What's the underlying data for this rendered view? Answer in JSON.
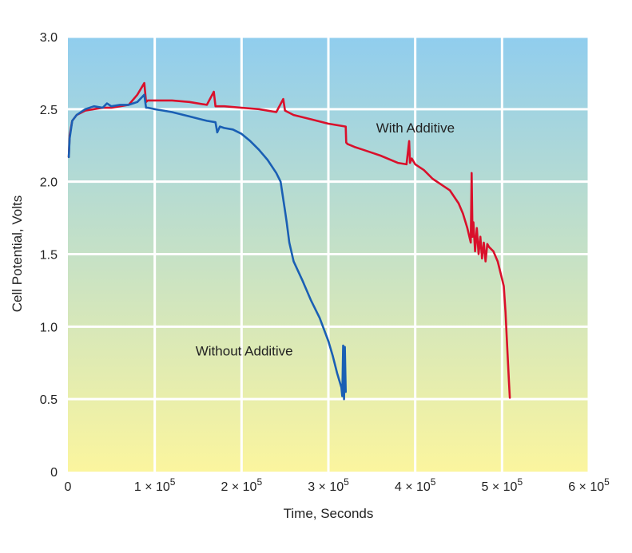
{
  "chart_data": {
    "type": "line",
    "title": "",
    "xlabel": "Time, Seconds",
    "ylabel": "Cell Potential, Volts",
    "xlim": [
      0,
      600000
    ],
    "ylim": [
      0,
      3.0
    ],
    "grid": true,
    "x_ticks": [
      {
        "value": 0,
        "label": "0"
      },
      {
        "value": 100000,
        "coef": "1",
        "sup": "5"
      },
      {
        "value": 200000,
        "coef": "2",
        "sup": "5"
      },
      {
        "value": 300000,
        "coef": "3",
        "sup": "5"
      },
      {
        "value": 400000,
        "coef": "4",
        "sup": "5"
      },
      {
        "value": 500000,
        "coef": "5",
        "sup": "5"
      },
      {
        "value": 600000,
        "coef": "6",
        "sup": "5"
      }
    ],
    "tick_mult": "× 10",
    "y_ticks": [
      {
        "value": 0,
        "label": "0"
      },
      {
        "value": 0.5,
        "label": "0.5"
      },
      {
        "value": 1.0,
        "label": "1.0"
      },
      {
        "value": 1.5,
        "label": "1.5"
      },
      {
        "value": 2.0,
        "label": "2.0"
      },
      {
        "value": 2.5,
        "label": "2.5"
      },
      {
        "value": 3.0,
        "label": "3.0"
      }
    ],
    "background_gradient": [
      "#90cdee",
      "#fbf59e"
    ],
    "series": [
      {
        "name": "With Additive",
        "color": "#d9102b",
        "x": [
          1000,
          2000,
          5000,
          10000,
          20000,
          30000,
          40000,
          50000,
          60000,
          70000,
          80000,
          88000,
          90000,
          92000,
          100000,
          120000,
          140000,
          160000,
          168000,
          170000,
          180000,
          200000,
          220000,
          240000,
          248000,
          250000,
          260000,
          280000,
          300000,
          320000,
          320500,
          322000,
          330000,
          340000,
          350000,
          360000,
          380000,
          390000,
          393000,
          394000,
          396000,
          400000,
          410000,
          420000,
          430000,
          440000,
          450000,
          455000,
          460000,
          464000,
          465000,
          466000,
          467000,
          469000,
          471000,
          473000,
          475000,
          477000,
          479000,
          481000,
          483000,
          485000,
          490000,
          495000,
          500000,
          502000,
          504000,
          506000,
          508000,
          509000
        ],
        "y": [
          2.17,
          2.32,
          2.42,
          2.46,
          2.49,
          2.5,
          2.51,
          2.51,
          2.52,
          2.53,
          2.6,
          2.68,
          2.55,
          2.56,
          2.56,
          2.56,
          2.55,
          2.53,
          2.62,
          2.52,
          2.52,
          2.51,
          2.5,
          2.48,
          2.57,
          2.49,
          2.46,
          2.43,
          2.4,
          2.38,
          2.27,
          2.26,
          2.24,
          2.22,
          2.2,
          2.18,
          2.13,
          2.12,
          2.28,
          2.13,
          2.16,
          2.12,
          2.08,
          2.02,
          1.98,
          1.94,
          1.85,
          1.78,
          1.68,
          1.58,
          2.06,
          1.62,
          1.72,
          1.52,
          1.68,
          1.5,
          1.62,
          1.47,
          1.58,
          1.45,
          1.57,
          1.55,
          1.52,
          1.45,
          1.33,
          1.28,
          1.1,
          0.85,
          0.62,
          0.51
        ]
      },
      {
        "name": "Without Additive",
        "color": "#1a5fb4",
        "x": [
          1000,
          2000,
          5000,
          10000,
          20000,
          30000,
          40000,
          45000,
          50000,
          60000,
          70000,
          80000,
          88000,
          90000,
          92000,
          100000,
          110000,
          120000,
          140000,
          160000,
          170000,
          172000,
          175000,
          180000,
          190000,
          200000,
          210000,
          220000,
          230000,
          240000,
          245000,
          250000,
          252000,
          255000,
          260000,
          270000,
          280000,
          290000,
          300000,
          305000,
          310000,
          315000,
          316000,
          317000,
          318000,
          319000,
          320000
        ],
        "y": [
          2.17,
          2.3,
          2.42,
          2.46,
          2.5,
          2.52,
          2.51,
          2.54,
          2.52,
          2.53,
          2.53,
          2.55,
          2.6,
          2.51,
          2.51,
          2.5,
          2.49,
          2.48,
          2.45,
          2.42,
          2.41,
          2.34,
          2.38,
          2.37,
          2.36,
          2.33,
          2.28,
          2.22,
          2.15,
          2.06,
          2.0,
          1.8,
          1.72,
          1.58,
          1.45,
          1.32,
          1.18,
          1.06,
          0.9,
          0.8,
          0.68,
          0.58,
          0.52,
          0.87,
          0.5,
          0.86,
          0.55
        ]
      }
    ],
    "annotations": [
      {
        "text": "With Additive",
        "x": 355000,
        "y": 2.34
      },
      {
        "text": "Without Additive",
        "x": 147000,
        "y": 0.8
      }
    ]
  }
}
